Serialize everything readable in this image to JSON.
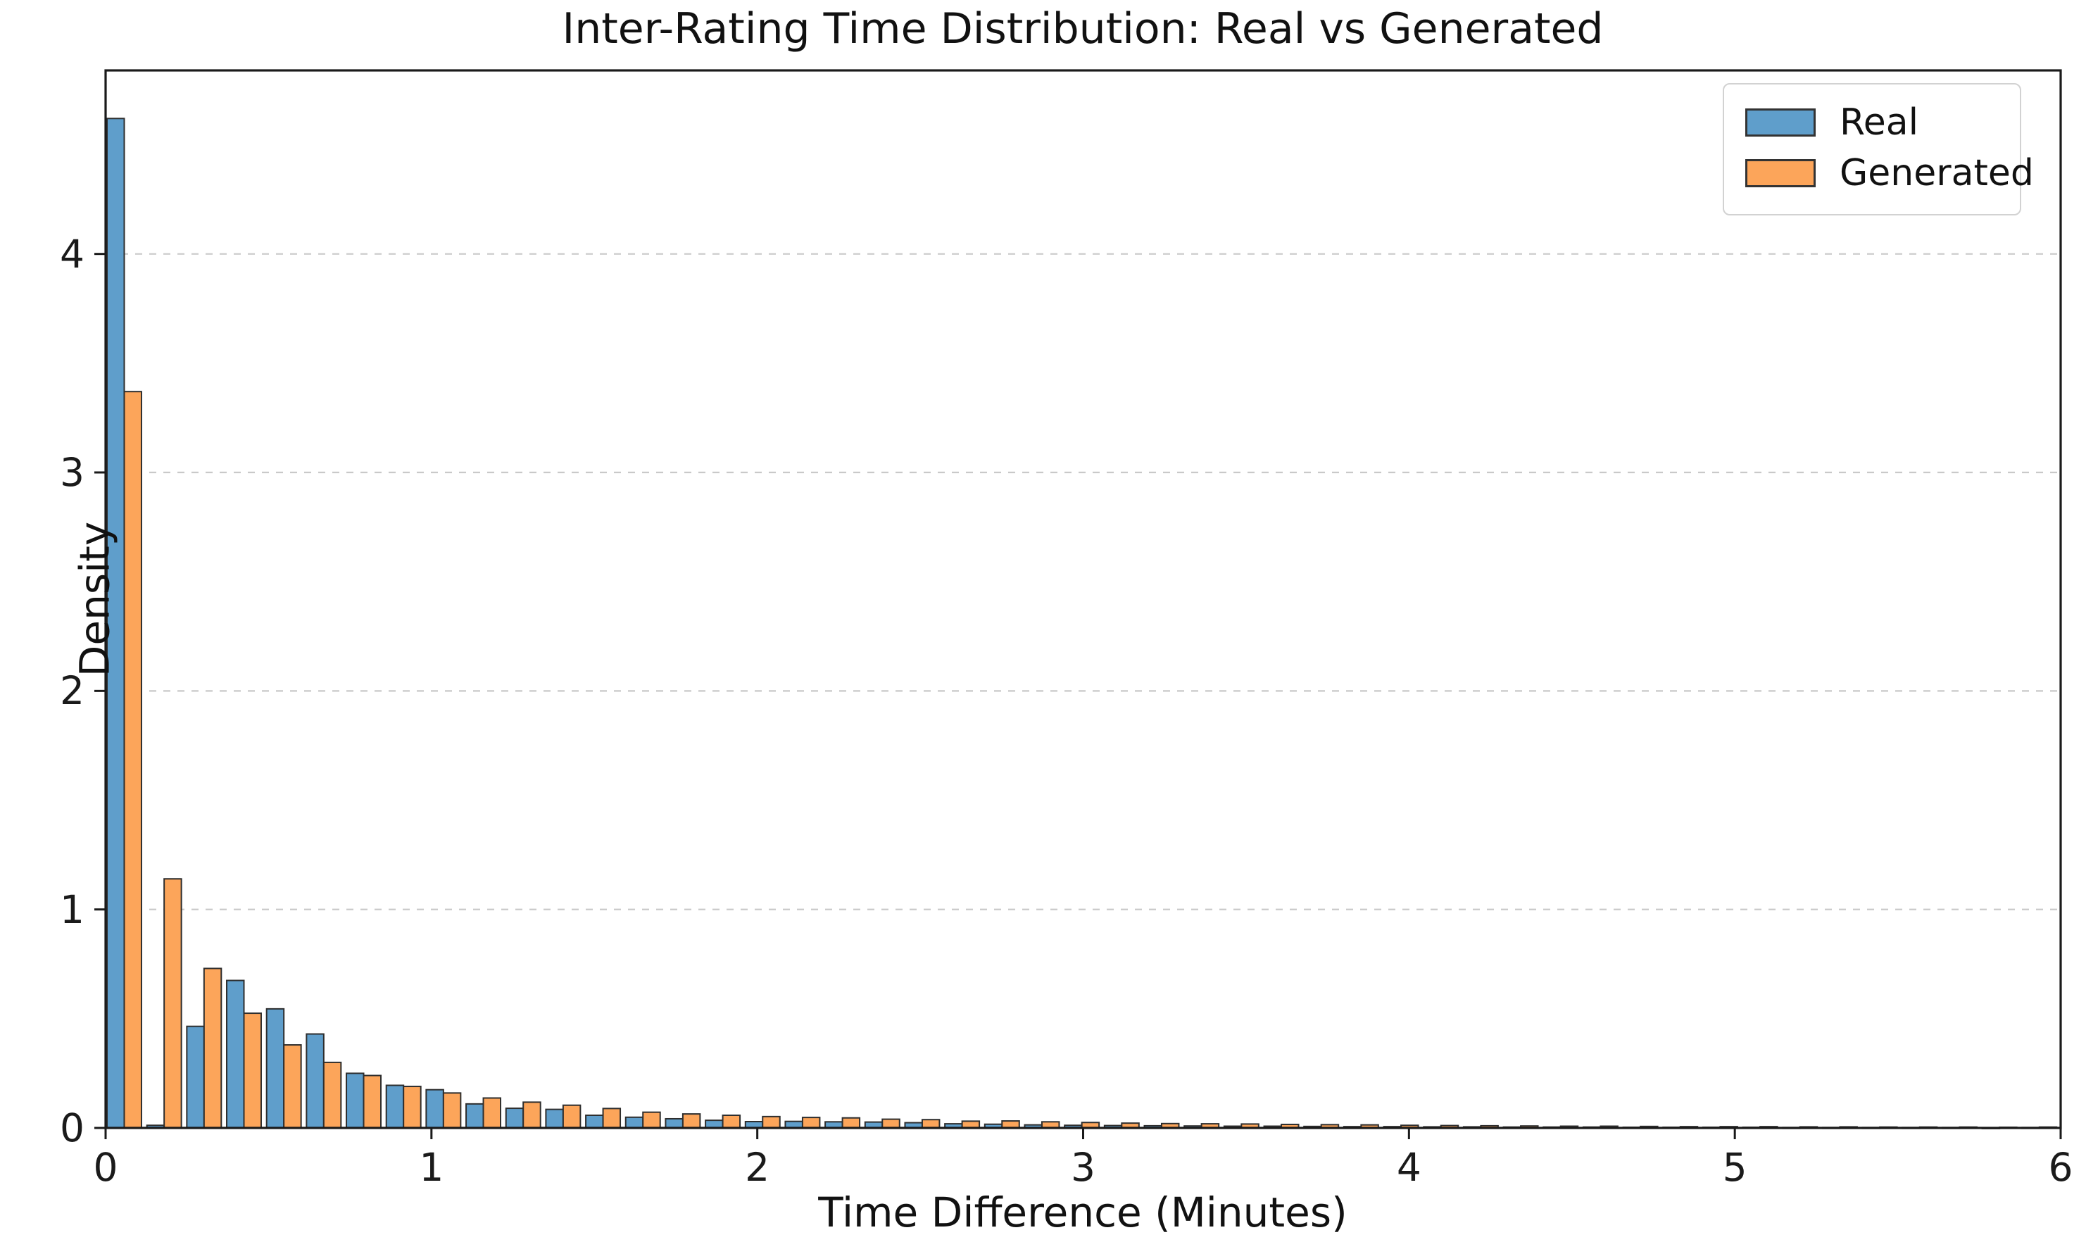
{
  "title": "Inter-Rating Time Distribution: Real vs Generated",
  "axes": {
    "xlabel": "Time Difference (Minutes)",
    "ylabel": "Density",
    "x_ticks": [
      0,
      1,
      2,
      3,
      4,
      5,
      6
    ],
    "y_ticks": [
      0,
      1,
      2,
      3,
      4
    ]
  },
  "legend": {
    "items": [
      {
        "label": "Real",
        "color": "#5f9ecb"
      },
      {
        "label": "Generated",
        "color": "#fca55a"
      }
    ]
  },
  "colors": {
    "real_fill": "#5f9ecb",
    "generated_fill": "#fca55a",
    "bar_edge": "#2e2e2e",
    "gridline": "#c9c9c9",
    "spine": "#1a1a1a"
  },
  "chart_data": {
    "type": "bar",
    "subtype": "histogram",
    "title": "Inter-Rating Time Distribution: Real vs Generated",
    "xlabel": "Time Difference (Minutes)",
    "ylabel": "Density",
    "xlim": [
      0,
      6
    ],
    "ylim": [
      0,
      4.84
    ],
    "grid": "dashed horizontal at y=1,2,3,4",
    "legend_position": "upper right",
    "bins": 49,
    "bin_range": [
      0,
      6
    ],
    "bin_width": 0.1224,
    "series": [
      {
        "name": "Real",
        "values": [
          4.62,
          0.012,
          0.465,
          0.675,
          0.545,
          0.43,
          0.25,
          0.195,
          0.175,
          0.11,
          0.09,
          0.085,
          0.058,
          0.049,
          0.042,
          0.035,
          0.029,
          0.03,
          0.028,
          0.027,
          0.024,
          0.019,
          0.017,
          0.014,
          0.012,
          0.011,
          0.01,
          0.009,
          0.008,
          0.008,
          0.007,
          0.006,
          0.006,
          0.005,
          0.005,
          0.004,
          0.004,
          0.004,
          0.003,
          0.003,
          0.003,
          0.003,
          0.002,
          0.002,
          0.002,
          0.002,
          0.002,
          0.001,
          0.002
        ]
      },
      {
        "name": "Generated",
        "values": [
          3.37,
          1.14,
          0.73,
          0.525,
          0.38,
          0.3,
          0.24,
          0.19,
          0.16,
          0.137,
          0.118,
          0.104,
          0.089,
          0.072,
          0.064,
          0.058,
          0.052,
          0.048,
          0.046,
          0.04,
          0.038,
          0.031,
          0.032,
          0.028,
          0.025,
          0.022,
          0.02,
          0.019,
          0.018,
          0.016,
          0.015,
          0.014,
          0.012,
          0.011,
          0.01,
          0.009,
          0.008,
          0.008,
          0.007,
          0.006,
          0.006,
          0.006,
          0.005,
          0.005,
          0.004,
          0.004,
          0.004,
          0.003,
          0.004
        ]
      }
    ]
  }
}
